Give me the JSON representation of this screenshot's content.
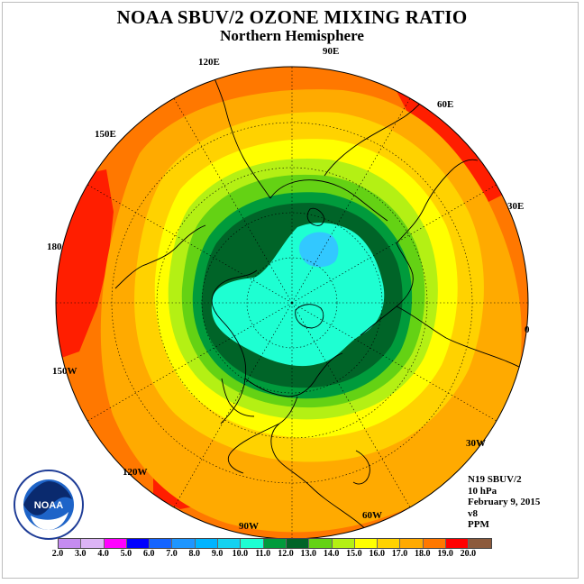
{
  "title": "NOAA SBUV/2 OZONE MIXING RATIO",
  "subtitle": "Northern Hemisphere",
  "longitude_labels": {
    "lon_90e": "90E",
    "lon_60e": "60E",
    "lon_30e": "30E",
    "lon_0": "0",
    "lon_30w": "30W",
    "lon_60w": "60W",
    "lon_90w": "90W",
    "lon_120w": "120W",
    "lon_150w": "150W",
    "lon_180": "180",
    "lon_150e": "150E",
    "lon_120e": "120E"
  },
  "info": {
    "instrument": "N19 SBUV/2",
    "level": "10 hPa",
    "date": "February 9, 2015",
    "version": "v8",
    "units": "PPM"
  },
  "logo": {
    "text": "NOAA",
    "icon": "noaa-logo"
  },
  "colorbar": {
    "ticks": [
      "2.0",
      "3.0",
      "4.0",
      "5.0",
      "6.0",
      "7.0",
      "8.0",
      "9.0",
      "10.0",
      "11.0",
      "12.0",
      "13.0",
      "14.0",
      "15.0",
      "16.0",
      "17.0",
      "18.0",
      "19.0",
      "20.0"
    ],
    "colors": [
      "#c58cf0",
      "#dcb4f5",
      "#ff00ff",
      "#0000ff",
      "#1464ff",
      "#1e96ff",
      "#00b4ff",
      "#14d2f0",
      "#1effd2",
      "#009b3c",
      "#006428",
      "#64d214",
      "#b4f014",
      "#ffff00",
      "#ffd200",
      "#ffaa00",
      "#ff7800",
      "#ff0000",
      "#8c5a3c"
    ]
  },
  "map_colors": {
    "outer": "#ff7800",
    "band_17": "#ffaa00",
    "band_16": "#ffd200",
    "band_15": "#ffff00",
    "band_14": "#b4f014",
    "band_13": "#64d214",
    "band_12": "#009b3c",
    "band_11": "#006428",
    "core": "#1effd2",
    "blue": "#32c8ff",
    "red": "#ff1e00"
  }
}
